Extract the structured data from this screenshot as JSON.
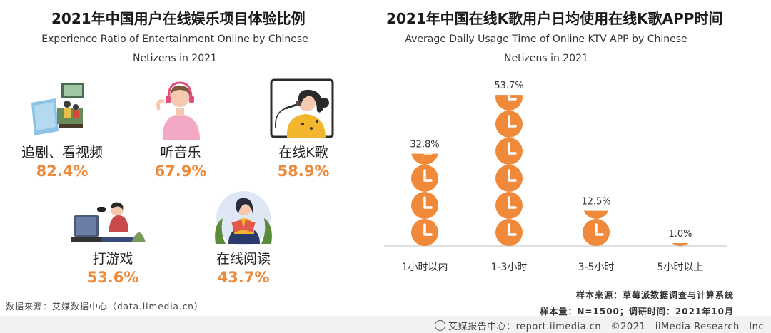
{
  "left": {
    "title": "2021年中国用户在线娱乐项目体验比例",
    "subtitle_line1": "Experience Ratio of Entertainment Online by Chinese",
    "subtitle_line2": "Netizens in 2021",
    "items": [
      {
        "label": "追剧、看视频",
        "value": "82.4%",
        "icon": "tv-viewer-icon"
      },
      {
        "label": "听音乐",
        "value": "67.9%",
        "icon": "headphone-listener-icon"
      },
      {
        "label": "在线K歌",
        "value": "58.9%",
        "icon": "karaoke-singer-icon"
      },
      {
        "label": "打游戏",
        "value": "53.6%",
        "icon": "gamer-icon"
      },
      {
        "label": "在线阅读",
        "value": "43.7%",
        "icon": "reader-icon"
      }
    ],
    "source": "数据来源：艾媒数据中心（data.iimedia.cn）"
  },
  "right": {
    "title": "2021年中国在线K歌用户日均使用在线K歌APP时间",
    "subtitle_line1": "Average Daily Usage Time of Online KTV APP by Chinese",
    "subtitle_line2": "Netizens in 2021",
    "sample_source": "样本来源：草莓派数据调查与计算系统",
    "sample_size": "样本量：N=1500；调研时间：2021年10月"
  },
  "footer": {
    "text": "艾媒报告中心：report.iimedia.cn　©2021　iiMedia Research　Inc"
  },
  "colors": {
    "accent": "#ec8a3c",
    "bar": "#f08a3a"
  },
  "chart_data": {
    "type": "bar",
    "title": "2021年中国在线K歌用户日均使用在线K歌APP时间",
    "categories": [
      "1小时以内",
      "1-3小时",
      "3-5小时",
      "5小时以上"
    ],
    "values": [
      32.8,
      53.7,
      12.5,
      1.0
    ],
    "value_labels": [
      "32.8%",
      "53.7%",
      "12.5%",
      "1.0%"
    ],
    "unit": "%",
    "ylim": [
      0,
      55
    ],
    "xlabel": "",
    "ylabel": ""
  }
}
